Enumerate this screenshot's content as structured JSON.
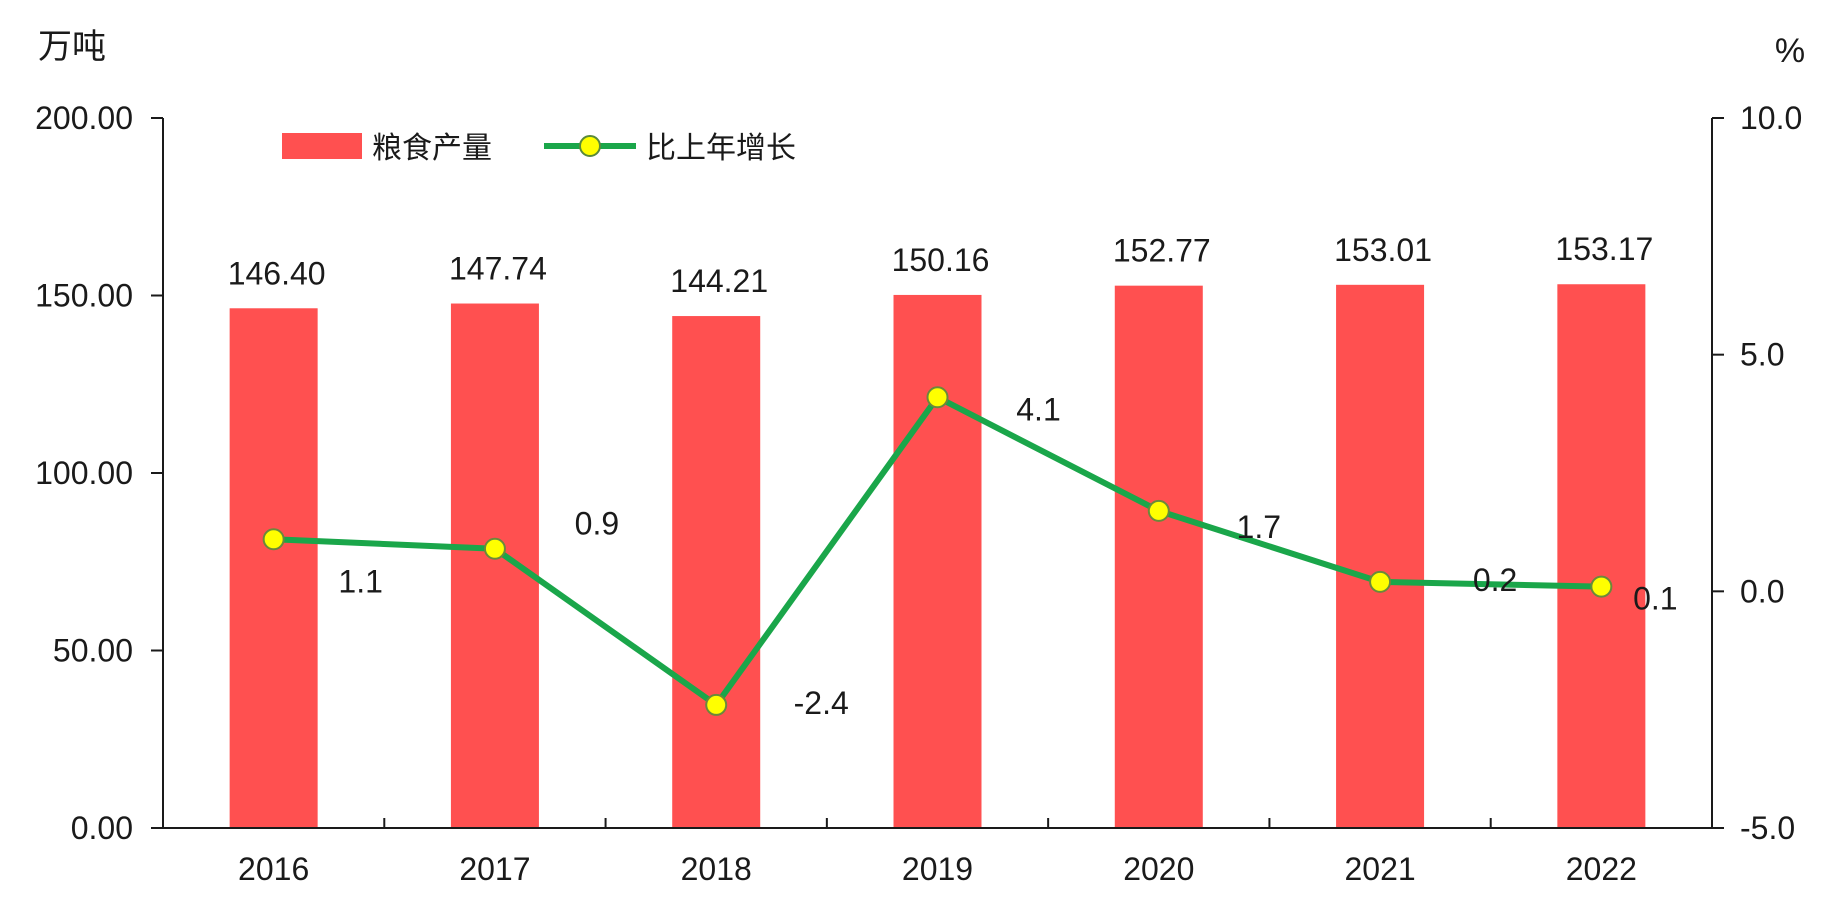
{
  "chart_data": {
    "type": "bar+line",
    "title": "",
    "categories": [
      "2016",
      "2017",
      "2018",
      "2019",
      "2020",
      "2021",
      "2022"
    ],
    "left_axis": {
      "unit": "万吨",
      "ylim": [
        0,
        200
      ],
      "ticks": [
        "0.00",
        "50.00",
        "100.00",
        "150.00",
        "200.00"
      ]
    },
    "right_axis": {
      "unit": "%",
      "ylim": [
        -5,
        10
      ],
      "ticks": [
        "-5.0",
        "0.0",
        "5.0",
        "10.0"
      ]
    },
    "series": [
      {
        "name": "粮食产量",
        "kind": "bar",
        "axis": "left",
        "color": "#ff5050",
        "values": [
          146.4,
          147.74,
          144.21,
          150.16,
          152.77,
          153.01,
          153.17
        ],
        "labels": [
          "146.40",
          "147.74",
          "144.21",
          "150.16",
          "152.77",
          "153.01",
          "153.17"
        ]
      },
      {
        "name": "比上年增长",
        "kind": "line",
        "axis": "right",
        "color": "#1aa64a",
        "marker_color": "#ffff00",
        "values": [
          1.1,
          0.9,
          -2.4,
          4.1,
          1.7,
          0.2,
          0.1
        ],
        "labels": [
          "1.1",
          "0.9",
          "-2.4",
          "4.1",
          "1.7",
          "0.2",
          "0.1"
        ]
      }
    ],
    "legend_position": "top-left",
    "grid": false
  }
}
